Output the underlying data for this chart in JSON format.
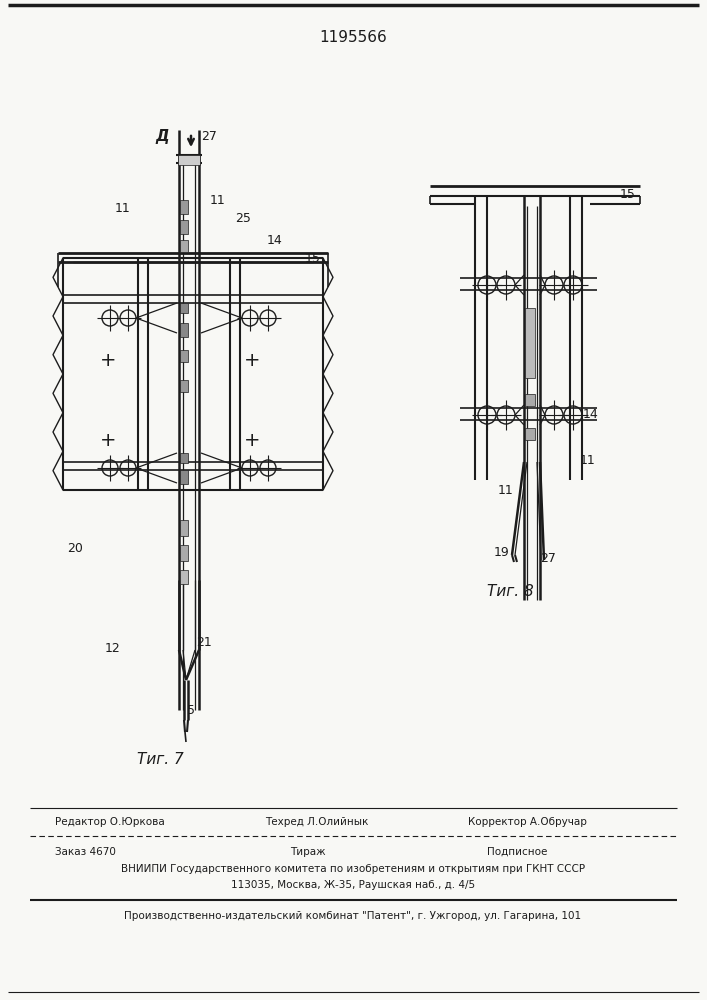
{
  "patent_number": "1195566",
  "bg_color": "#f8f8f5",
  "lc": "#1c1c1c",
  "editor_line": "Редактор О.Юркова",
  "techred_line": "Техред Л.Олийнык",
  "corrector_line": "Корректор А.Обручар",
  "order_label": "Заказ 4670",
  "tirazh_label": "Тираж",
  "podpisnoe_label": "Подписное",
  "vniip_line1": "ВНИИПИ Государственного комитета по изобретениям и открытиям при ГКНТ СССР",
  "vniip_line2": "113035, Москва, Ж-35, Раушская наб., д. 4/5",
  "publisher_line": "Производственно-издательский комбинат \"Патент\", г. Ужгород, ул. Гагарина, 101",
  "direction_label": "Д"
}
